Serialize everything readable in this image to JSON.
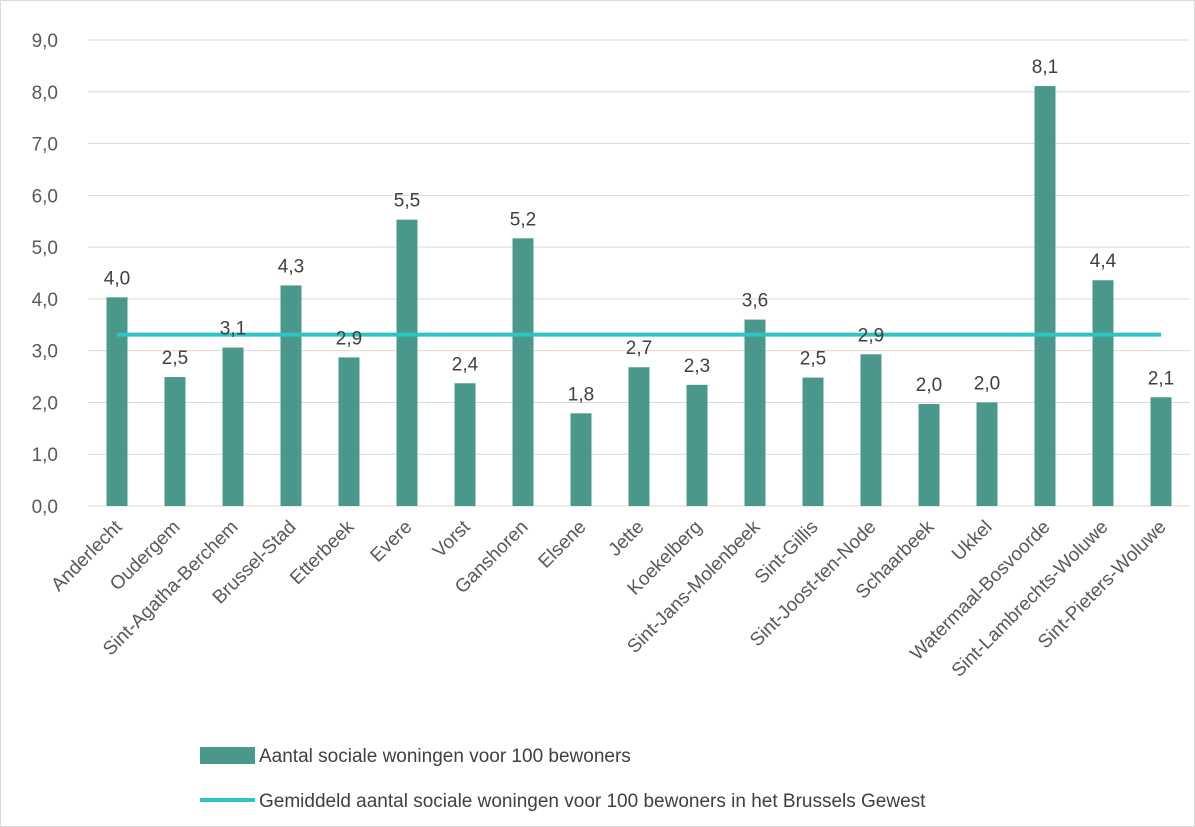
{
  "chart_data": {
    "type": "bar",
    "categories": [
      "Anderlecht",
      "Oudergem",
      "Sint-Agatha-Berchem",
      "Brussel-Stad",
      "Etterbeek",
      "Evere",
      "Vorst",
      "Ganshoren",
      "Elsene",
      "Jette",
      "Koekelberg",
      "Sint-Jans-Molenbeek",
      "Sint-Gillis",
      "Sint-Joost-ten-Node",
      "Schaarbeek",
      "Ukkel",
      "Watermaal-Bosvoorde",
      "Sint-Lambrechts-Woluwe",
      "Sint-Pieters-Woluwe"
    ],
    "series": [
      {
        "name": "Aantal sociale woningen voor 100 bewoners",
        "type": "bar",
        "color": "#4a978c",
        "values": [
          4.03,
          2.49,
          3.06,
          4.26,
          2.87,
          5.53,
          2.37,
          5.17,
          1.79,
          2.68,
          2.34,
          3.6,
          2.48,
          2.93,
          1.97,
          2.0,
          8.11,
          4.36,
          2.1
        ],
        "labels": [
          "4,0",
          "2,5",
          "3,1",
          "4,3",
          "2,9",
          "5,5",
          "2,4",
          "5,2",
          "1,8",
          "2,7",
          "2,3",
          "3,6",
          "2,5",
          "2,9",
          "2,0",
          "2,0",
          "8,1",
          "4,4",
          "2,1"
        ]
      },
      {
        "name": "Gemiddeld aantal sociale woningen voor 100 bewoners in het Brussels Gewest",
        "type": "line",
        "color": "#2ec4c4",
        "value": 3.31
      }
    ],
    "y_ticks": [
      "0,0",
      "1,0",
      "2,0",
      "3,0",
      "4,0",
      "5,0",
      "6,0",
      "7,0",
      "8,0",
      "9,0"
    ],
    "ylim": [
      0,
      9
    ],
    "grid": true,
    "legend_position": "bottom"
  }
}
